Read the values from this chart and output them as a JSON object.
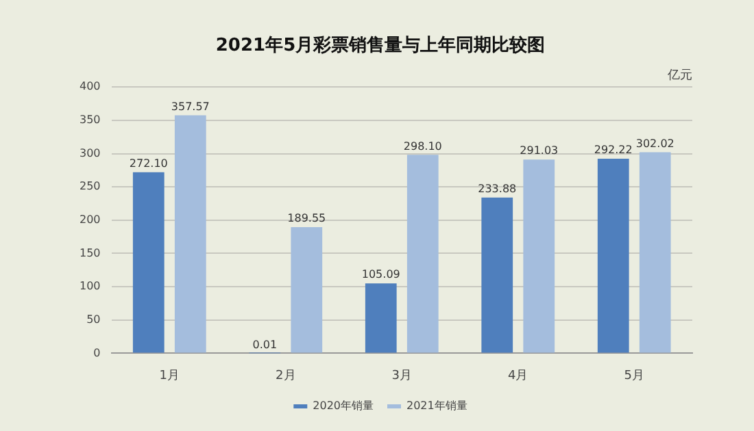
{
  "chart_data": {
    "type": "bar",
    "title": "2021年5月彩票销售量与上年同期比较图",
    "ylabel": "亿元",
    "categories": [
      "1月",
      "2月",
      "3月",
      "4月",
      "5月"
    ],
    "series": [
      {
        "name": "2020年销量",
        "color": "#4f7fbd",
        "values": [
          272.1,
          0.01,
          105.09,
          233.88,
          292.22
        ]
      },
      {
        "name": "2021年销量",
        "color": "#a4bddd",
        "values": [
          357.57,
          189.55,
          298.1,
          291.03,
          302.02
        ]
      }
    ],
    "value_labels": [
      [
        "272.10",
        "0.01",
        "105.09",
        "233.88",
        "292.22"
      ],
      [
        "357.57",
        "189.55",
        "298.10",
        "291.03",
        "302.02"
      ]
    ],
    "ylim": [
      0,
      400
    ],
    "yticks": [
      0,
      50,
      100,
      150,
      200,
      250,
      300,
      350,
      400
    ],
    "grid": "y",
    "legend": "bottom"
  }
}
